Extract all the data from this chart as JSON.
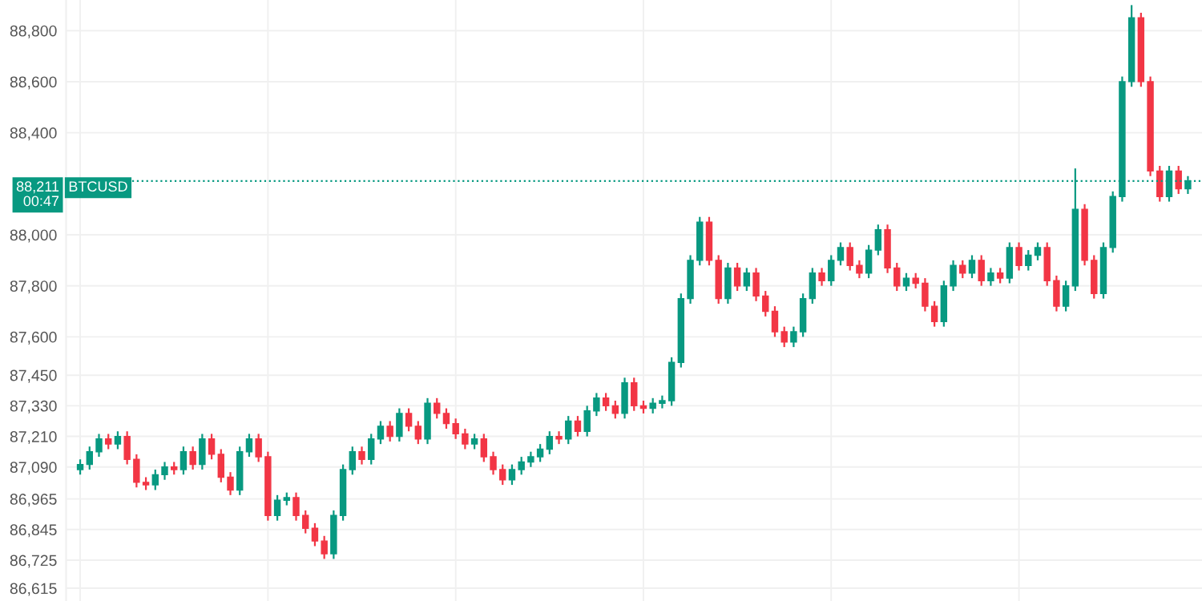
{
  "chart_data": {
    "type": "candlestick",
    "categories": [
      null,
      null,
      null,
      null,
      null,
      null,
      null,
      null,
      null,
      null,
      null,
      null,
      null,
      null,
      null,
      null,
      null,
      null,
      null,
      null,
      null,
      null,
      null,
      null,
      null,
      null,
      null,
      null,
      null,
      null,
      null,
      null,
      null,
      null,
      null,
      null,
      null,
      null,
      null,
      null,
      null,
      null,
      null,
      null,
      null,
      null,
      null,
      null,
      null,
      null,
      null,
      null,
      null,
      null,
      null,
      null,
      null,
      null,
      null,
      null,
      null,
      null,
      null,
      null,
      null,
      null,
      null,
      null,
      null,
      null,
      null,
      null,
      null,
      null,
      null,
      null,
      null,
      null,
      null,
      null,
      null,
      null,
      null,
      null,
      null,
      null,
      null,
      null,
      null,
      null,
      null,
      null,
      null,
      null,
      null,
      null,
      null,
      null,
      null,
      null,
      null,
      null,
      null,
      null,
      null,
      null,
      null,
      null,
      null,
      null,
      null,
      null,
      null,
      null,
      null,
      null,
      null,
      null,
      null
    ],
    "ohlc": [
      [
        87080,
        87120,
        87060,
        87100
      ],
      [
        87100,
        87170,
        87080,
        87150
      ],
      [
        87150,
        87220,
        87130,
        87200
      ],
      [
        87200,
        87220,
        87160,
        87180
      ],
      [
        87180,
        87230,
        87160,
        87210
      ],
      [
        87210,
        87230,
        87100,
        87120
      ],
      [
        87120,
        87140,
        87010,
        87030
      ],
      [
        87030,
        87050,
        87000,
        87020
      ],
      [
        87020,
        87080,
        87000,
        87060
      ],
      [
        87060,
        87110,
        87040,
        87090
      ],
      [
        87090,
        87110,
        87060,
        87080
      ],
      [
        87080,
        87170,
        87060,
        87150
      ],
      [
        87150,
        87170,
        87080,
        87100
      ],
      [
        87100,
        87220,
        87080,
        87200
      ],
      [
        87200,
        87220,
        87120,
        87140
      ],
      [
        87140,
        87160,
        87030,
        87050
      ],
      [
        87050,
        87070,
        86980,
        87000
      ],
      [
        87000,
        87170,
        86980,
        87150
      ],
      [
        87150,
        87220,
        87130,
        87200
      ],
      [
        87200,
        87220,
        87110,
        87130
      ],
      [
        87130,
        87150,
        86880,
        86900
      ],
      [
        86900,
        86980,
        86880,
        86960
      ],
      [
        86960,
        86990,
        86940,
        86970
      ],
      [
        86970,
        86990,
        86880,
        86900
      ],
      [
        86900,
        86920,
        86830,
        86850
      ],
      [
        86850,
        86870,
        86780,
        86800
      ],
      [
        86800,
        86820,
        86730,
        86750
      ],
      [
        86750,
        86920,
        86730,
        86900
      ],
      [
        86900,
        87100,
        86880,
        87080
      ],
      [
        87080,
        87170,
        87060,
        87150
      ],
      [
        87150,
        87170,
        87100,
        87120
      ],
      [
        87120,
        87220,
        87100,
        87200
      ],
      [
        87200,
        87270,
        87180,
        87250
      ],
      [
        87250,
        87270,
        87190,
        87210
      ],
      [
        87210,
        87320,
        87190,
        87300
      ],
      [
        87300,
        87320,
        87230,
        87250
      ],
      [
        87250,
        87270,
        87180,
        87200
      ],
      [
        87200,
        87360,
        87180,
        87340
      ],
      [
        87340,
        87360,
        87280,
        87300
      ],
      [
        87300,
        87320,
        87240,
        87260
      ],
      [
        87260,
        87280,
        87200,
        87220
      ],
      [
        87220,
        87240,
        87160,
        87180
      ],
      [
        87180,
        87220,
        87160,
        87200
      ],
      [
        87200,
        87220,
        87110,
        87130
      ],
      [
        87130,
        87150,
        87060,
        87080
      ],
      [
        87080,
        87100,
        87020,
        87040
      ],
      [
        87040,
        87100,
        87020,
        87080
      ],
      [
        87080,
        87130,
        87060,
        87110
      ],
      [
        87110,
        87150,
        87090,
        87130
      ],
      [
        87130,
        87180,
        87110,
        87160
      ],
      [
        87160,
        87230,
        87140,
        87210
      ],
      [
        87210,
        87230,
        87180,
        87200
      ],
      [
        87200,
        87290,
        87180,
        87270
      ],
      [
        87270,
        87290,
        87210,
        87230
      ],
      [
        87230,
        87330,
        87210,
        87310
      ],
      [
        87310,
        87380,
        87290,
        87360
      ],
      [
        87360,
        87380,
        87310,
        87330
      ],
      [
        87330,
        87350,
        87280,
        87300
      ],
      [
        87300,
        87440,
        87280,
        87420
      ],
      [
        87420,
        87440,
        87310,
        87330
      ],
      [
        87330,
        87350,
        87300,
        87320
      ],
      [
        87320,
        87360,
        87300,
        87340
      ],
      [
        87340,
        87370,
        87320,
        87350
      ],
      [
        87350,
        87520,
        87330,
        87500
      ],
      [
        87500,
        87770,
        87480,
        87750
      ],
      [
        87750,
        87920,
        87730,
        87900
      ],
      [
        87900,
        88070,
        87880,
        88050
      ],
      [
        88050,
        88070,
        87880,
        87900
      ],
      [
        87900,
        87920,
        87730,
        87750
      ],
      [
        87750,
        87890,
        87730,
        87870
      ],
      [
        87870,
        87890,
        87780,
        87800
      ],
      [
        87800,
        87870,
        87780,
        87850
      ],
      [
        87850,
        87870,
        87740,
        87760
      ],
      [
        87760,
        87780,
        87680,
        87700
      ],
      [
        87700,
        87720,
        87600,
        87620
      ],
      [
        87620,
        87640,
        87560,
        87580
      ],
      [
        87580,
        87640,
        87560,
        87620
      ],
      [
        87620,
        87770,
        87600,
        87750
      ],
      [
        87750,
        87870,
        87730,
        87850
      ],
      [
        87850,
        87870,
        87800,
        87820
      ],
      [
        87820,
        87920,
        87800,
        87900
      ],
      [
        87900,
        87970,
        87880,
        87950
      ],
      [
        87950,
        87970,
        87860,
        87880
      ],
      [
        87880,
        87900,
        87830,
        87850
      ],
      [
        87850,
        87960,
        87830,
        87940
      ],
      [
        87940,
        88040,
        87920,
        88020
      ],
      [
        88020,
        88040,
        87850,
        87870
      ],
      [
        87870,
        87890,
        87780,
        87800
      ],
      [
        87800,
        87850,
        87780,
        87830
      ],
      [
        87830,
        87850,
        87790,
        87810
      ],
      [
        87810,
        87830,
        87700,
        87720
      ],
      [
        87720,
        87740,
        87640,
        87660
      ],
      [
        87660,
        87820,
        87640,
        87800
      ],
      [
        87800,
        87900,
        87780,
        87880
      ],
      [
        87880,
        87900,
        87830,
        87850
      ],
      [
        87850,
        87920,
        87830,
        87900
      ],
      [
        87900,
        87920,
        87800,
        87820
      ],
      [
        87820,
        87870,
        87800,
        87850
      ],
      [
        87850,
        87870,
        87810,
        87830
      ],
      [
        87830,
        87970,
        87810,
        87950
      ],
      [
        87950,
        87970,
        87860,
        87880
      ],
      [
        87880,
        87940,
        87860,
        87920
      ],
      [
        87920,
        87970,
        87900,
        87950
      ],
      [
        87950,
        87970,
        87800,
        87820
      ],
      [
        87820,
        87840,
        87700,
        87720
      ],
      [
        87720,
        87820,
        87700,
        87800
      ],
      [
        87800,
        88260,
        87780,
        88100
      ],
      [
        88100,
        88120,
        87880,
        87900
      ],
      [
        87900,
        87920,
        87750,
        87770
      ],
      [
        87770,
        87970,
        87750,
        87950
      ],
      [
        87950,
        88170,
        87930,
        88150
      ],
      [
        88150,
        88620,
        88130,
        88600
      ],
      [
        88600,
        88900,
        88580,
        88850
      ],
      [
        88850,
        88870,
        88580,
        88600
      ],
      [
        88600,
        88620,
        88230,
        88250
      ],
      [
        88250,
        88270,
        88130,
        88150
      ],
      [
        88150,
        88270,
        88130,
        88250
      ],
      [
        88250,
        88270,
        88160,
        88180
      ],
      [
        88180,
        88230,
        88160,
        88211
      ]
    ],
    "ylim": [
      86565,
      88920
    ],
    "yticks": [
      {
        "value": 86615,
        "label": "86,615"
      },
      {
        "value": 86725,
        "label": "86,725"
      },
      {
        "value": 86845,
        "label": "86,845"
      },
      {
        "value": 86965,
        "label": "86,965"
      },
      {
        "value": 87090,
        "label": "87,090"
      },
      {
        "value": 87210,
        "label": "87,210"
      },
      {
        "value": 87330,
        "label": "87,330"
      },
      {
        "value": 87450,
        "label": "87,450"
      },
      {
        "value": 87600,
        "label": "87,600"
      },
      {
        "value": 87800,
        "label": "87,800"
      },
      {
        "value": 88000,
        "label": "88,000"
      },
      {
        "value": 88400,
        "label": "88,400"
      },
      {
        "value": 88600,
        "label": "88,600"
      },
      {
        "value": 88800,
        "label": "88,800"
      }
    ],
    "ref_lines": [
      {
        "axis": "y",
        "value": 88211,
        "label": "88,211",
        "color": "#089981",
        "line_style": "dotted"
      }
    ],
    "annotations": [
      "00:47",
      "BTCUSD"
    ],
    "grid": true,
    "tick_labels": "y"
  }
}
